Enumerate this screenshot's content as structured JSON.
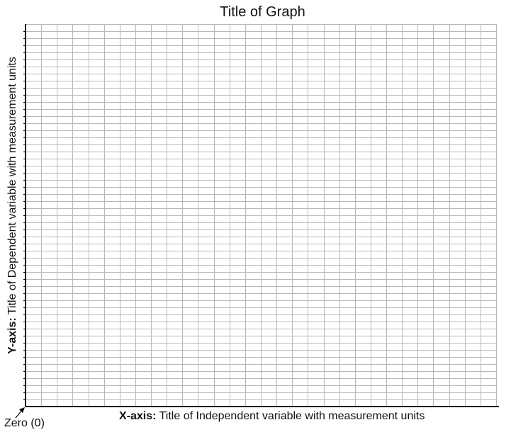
{
  "chart_data": {
    "type": "scatter",
    "title": "Title of Graph",
    "xlabel_prefix": "X-axis:",
    "xlabel": "Title of Independent variable with measurement units",
    "ylabel_prefix": "Y-axis:",
    "ylabel": "Title of Dependent variable  with measurement units",
    "origin_label": "Zero (0)",
    "grid": true,
    "grid_columns": 30,
    "grid_rows": 54,
    "series": []
  },
  "colors": {
    "grid": "#b8b8b8",
    "axis": "#000000"
  }
}
